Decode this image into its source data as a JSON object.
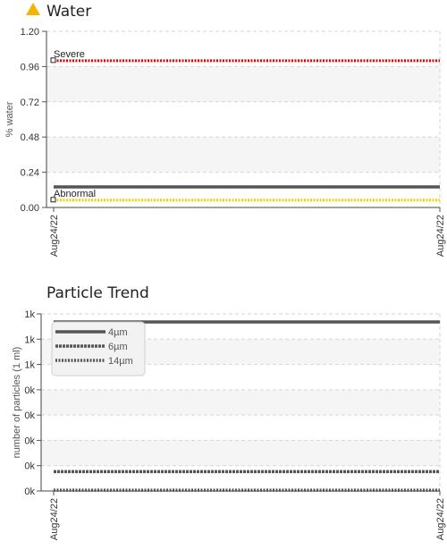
{
  "water": {
    "title": "Water",
    "title_icon": "warning-triangle-icon",
    "warning_color": "#f5b400",
    "chart_data": {
      "type": "line",
      "title": "Water",
      "ylabel": "% water",
      "xlabel": "",
      "ylim": [
        0,
        1.2
      ],
      "yticks": [
        "0.00",
        "0.24",
        "0.48",
        "0.72",
        "0.96",
        "1.20"
      ],
      "x_ticks": [
        "Aug24/22",
        "Aug24/22"
      ],
      "grid": true,
      "series": [
        {
          "values": [
            0.14,
            0.14
          ],
          "color": "#555555",
          "style": "solid"
        }
      ],
      "thresholds": [
        {
          "name": "Severe",
          "value": 1.0,
          "color": "#e00000",
          "style": "dotted"
        },
        {
          "name": "Abnormal",
          "value": 0.05,
          "color": "#f0d000",
          "style": "dotted"
        }
      ]
    }
  },
  "particles": {
    "title": "Particle Trend",
    "chart_data": {
      "type": "line",
      "title": "Particle Trend",
      "ylabel": "number of particles (1 ml)",
      "xlabel": "",
      "yticks": [
        "0k",
        "0k",
        "0k",
        "0k",
        "0k",
        "1k",
        "1k",
        "1k"
      ],
      "x_ticks": [
        "Aug24/22",
        "Aug24/22"
      ],
      "grid": true,
      "legend_position": "top-left",
      "series": [
        {
          "name": "4µm",
          "values": [
            1050,
            1050
          ],
          "color": "#555555",
          "style": "solid"
        },
        {
          "name": "6µm",
          "values": [
            120,
            120
          ],
          "color": "#555555",
          "style": "dashed"
        },
        {
          "name": "14µm",
          "values": [
            5,
            5
          ],
          "color": "#555555",
          "style": "dotted"
        }
      ]
    }
  }
}
